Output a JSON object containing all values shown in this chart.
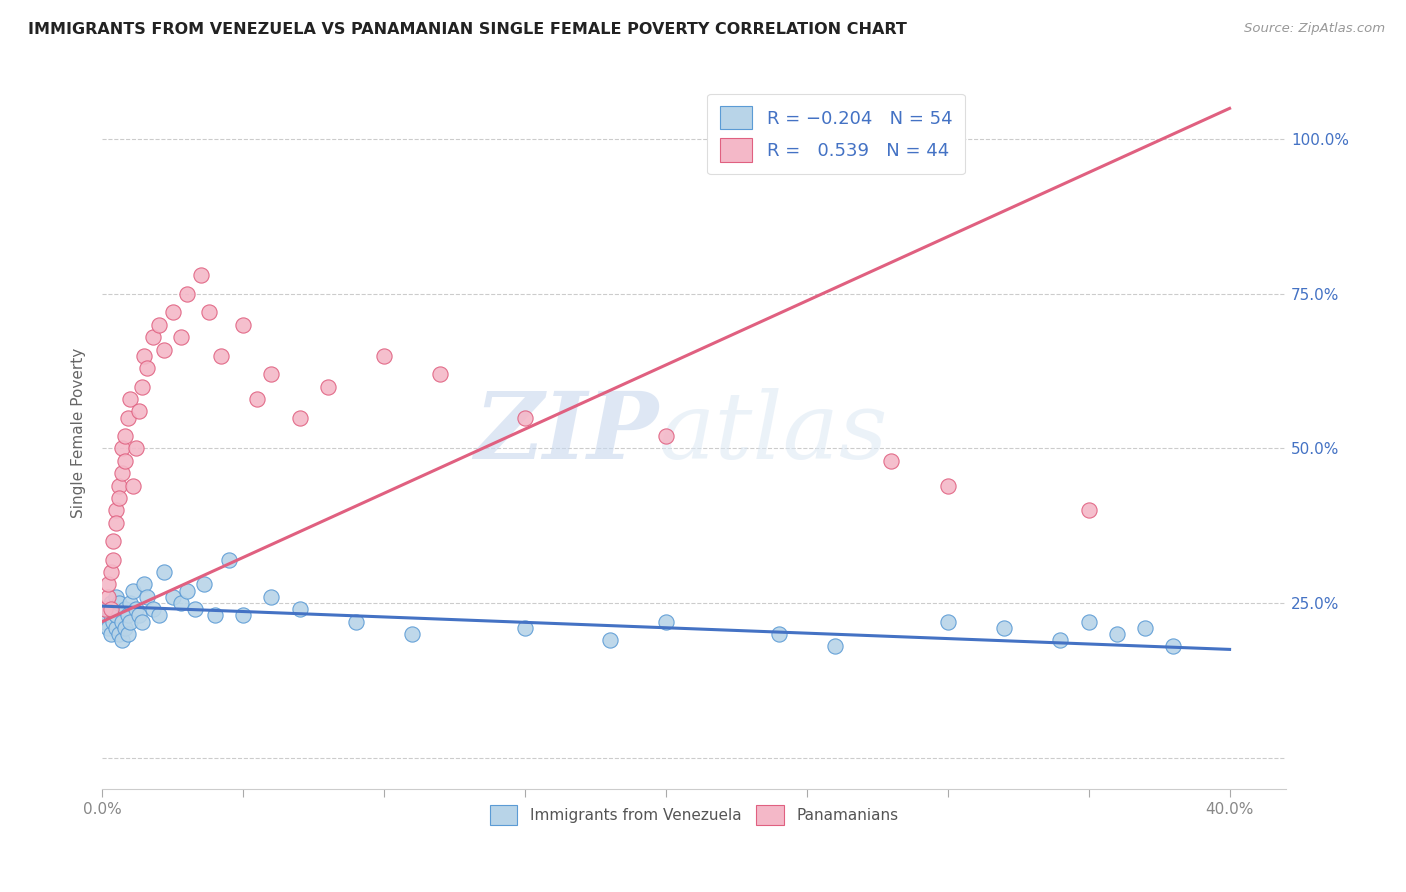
{
  "title": "IMMIGRANTS FROM VENEZUELA VS PANAMANIAN SINGLE FEMALE POVERTY CORRELATION CHART",
  "source": "Source: ZipAtlas.com",
  "ylabel": "Single Female Poverty",
  "ytick_values": [
    0.0,
    0.25,
    0.5,
    0.75,
    1.0
  ],
  "ytick_labels_right": [
    "",
    "25.0%",
    "50.0%",
    "75.0%",
    "100.0%"
  ],
  "xtick_positions": [
    0.0,
    0.05,
    0.1,
    0.15,
    0.2,
    0.25,
    0.3,
    0.35,
    0.4
  ],
  "xlim": [
    0.0,
    0.42
  ],
  "ylim": [
    -0.05,
    1.1
  ],
  "color_blue_fill": "#b8d4e8",
  "color_blue_edge": "#5b9bd5",
  "color_pink_fill": "#f4b8c8",
  "color_pink_edge": "#e06080",
  "color_line_blue": "#4472c4",
  "color_line_pink": "#e07090",
  "color_title": "#222222",
  "color_source": "#999999",
  "color_ytick": "#4472c4",
  "color_xtick": "#888888",
  "watermark_zip": "ZIP",
  "watermark_atlas": "atlas",
  "scatter_venezuela_x": [
    0.001,
    0.002,
    0.002,
    0.003,
    0.003,
    0.003,
    0.004,
    0.004,
    0.005,
    0.005,
    0.005,
    0.006,
    0.006,
    0.007,
    0.007,
    0.008,
    0.008,
    0.009,
    0.009,
    0.01,
    0.01,
    0.011,
    0.012,
    0.013,
    0.014,
    0.015,
    0.016,
    0.018,
    0.02,
    0.022,
    0.025,
    0.028,
    0.03,
    0.033,
    0.036,
    0.04,
    0.045,
    0.05,
    0.06,
    0.07,
    0.09,
    0.11,
    0.15,
    0.18,
    0.2,
    0.24,
    0.26,
    0.3,
    0.32,
    0.34,
    0.35,
    0.36,
    0.37,
    0.38
  ],
  "scatter_venezuela_y": [
    0.22,
    0.24,
    0.21,
    0.2,
    0.23,
    0.25,
    0.22,
    0.24,
    0.21,
    0.23,
    0.26,
    0.2,
    0.25,
    0.22,
    0.19,
    0.24,
    0.21,
    0.23,
    0.2,
    0.25,
    0.22,
    0.27,
    0.24,
    0.23,
    0.22,
    0.28,
    0.26,
    0.24,
    0.23,
    0.3,
    0.26,
    0.25,
    0.27,
    0.24,
    0.28,
    0.23,
    0.32,
    0.23,
    0.26,
    0.24,
    0.22,
    0.2,
    0.21,
    0.19,
    0.22,
    0.2,
    0.18,
    0.22,
    0.21,
    0.19,
    0.22,
    0.2,
    0.21,
    0.18
  ],
  "scatter_panama_x": [
    0.001,
    0.002,
    0.002,
    0.003,
    0.003,
    0.004,
    0.004,
    0.005,
    0.005,
    0.006,
    0.006,
    0.007,
    0.007,
    0.008,
    0.008,
    0.009,
    0.01,
    0.011,
    0.012,
    0.013,
    0.014,
    0.015,
    0.016,
    0.018,
    0.02,
    0.022,
    0.025,
    0.028,
    0.03,
    0.035,
    0.038,
    0.042,
    0.05,
    0.055,
    0.06,
    0.07,
    0.08,
    0.1,
    0.12,
    0.15,
    0.2,
    0.28,
    0.3,
    0.35
  ],
  "scatter_panama_y": [
    0.24,
    0.26,
    0.28,
    0.3,
    0.24,
    0.32,
    0.35,
    0.4,
    0.38,
    0.44,
    0.42,
    0.5,
    0.46,
    0.52,
    0.48,
    0.55,
    0.58,
    0.44,
    0.5,
    0.56,
    0.6,
    0.65,
    0.63,
    0.68,
    0.7,
    0.66,
    0.72,
    0.68,
    0.75,
    0.78,
    0.72,
    0.65,
    0.7,
    0.58,
    0.62,
    0.55,
    0.6,
    0.65,
    0.62,
    0.55,
    0.52,
    0.48,
    0.44,
    0.4
  ],
  "trendline_venezuela_x0": 0.0,
  "trendline_venezuela_x1": 0.4,
  "trendline_venezuela_y0": 0.245,
  "trendline_venezuela_y1": 0.175,
  "trendline_panama_x0": 0.0,
  "trendline_panama_x1": 0.4,
  "trendline_panama_y0": 0.22,
  "trendline_panama_y1": 1.05
}
